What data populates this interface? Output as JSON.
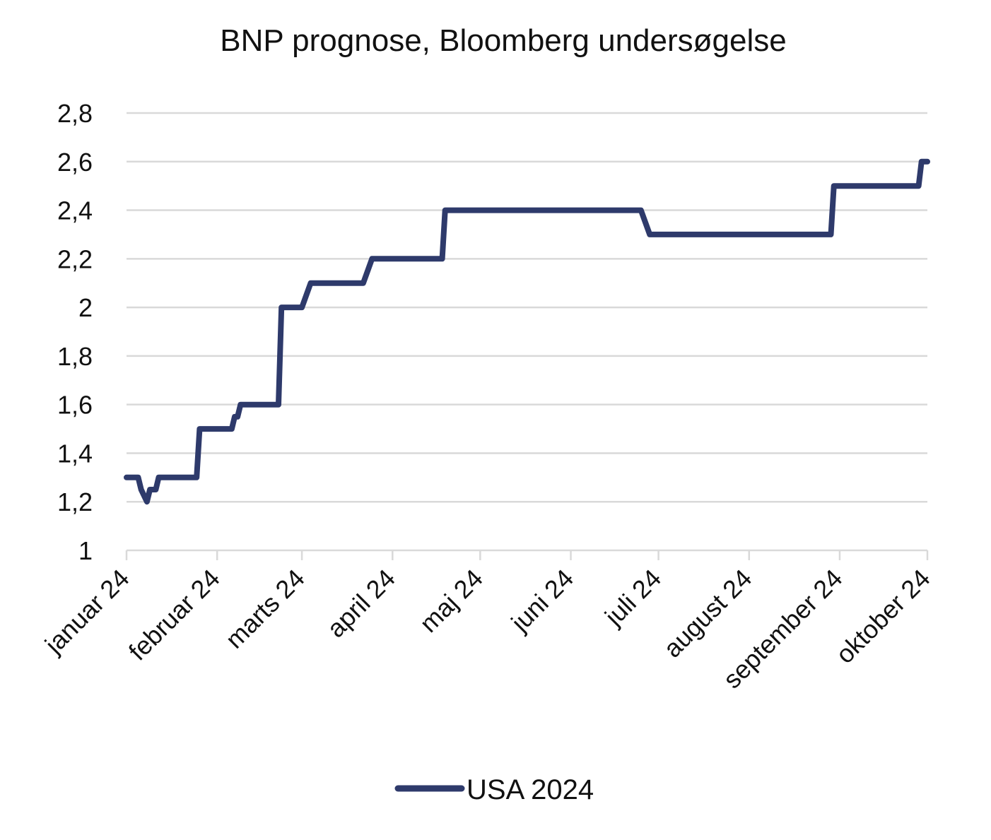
{
  "chart_data": {
    "type": "line",
    "title": "BNP prognose, Bloomberg undersøgelse",
    "xlabel": "",
    "ylabel": "",
    "ylim": [
      1,
      2.8
    ],
    "y_ticks": [
      "1",
      "1,2",
      "1,4",
      "1,6",
      "1,8",
      "2",
      "2,2",
      "2,4",
      "2,6",
      "2,8"
    ],
    "x_ticks": [
      "januar 24",
      "februar 24",
      "marts 24",
      "april 24",
      "maj 24",
      "juni 24",
      "juli 24",
      "august 24",
      "september 24",
      "oktober 24"
    ],
    "grid": true,
    "legend_position": "bottom",
    "series": [
      {
        "name": "USA 2024",
        "color": "#2E3A6B",
        "points": [
          [
            "2024-01-01",
            1.3
          ],
          [
            "2024-01-05",
            1.3
          ],
          [
            "2024-01-06",
            1.25
          ],
          [
            "2024-01-08",
            1.2
          ],
          [
            "2024-01-09",
            1.25
          ],
          [
            "2024-01-11",
            1.25
          ],
          [
            "2024-01-12",
            1.3
          ],
          [
            "2024-01-25",
            1.3
          ],
          [
            "2024-01-26",
            1.5
          ],
          [
            "2024-02-06",
            1.5
          ],
          [
            "2024-02-07",
            1.55
          ],
          [
            "2024-02-08",
            1.55
          ],
          [
            "2024-02-09",
            1.6
          ],
          [
            "2024-02-22",
            1.6
          ],
          [
            "2024-02-23",
            2.0
          ],
          [
            "2024-03-01",
            2.0
          ],
          [
            "2024-03-04",
            2.1
          ],
          [
            "2024-03-22",
            2.1
          ],
          [
            "2024-03-25",
            2.2
          ],
          [
            "2024-04-18",
            2.2
          ],
          [
            "2024-04-19",
            2.4
          ],
          [
            "2024-06-25",
            2.4
          ],
          [
            "2024-06-28",
            2.3
          ],
          [
            "2024-08-29",
            2.3
          ],
          [
            "2024-08-30",
            2.5
          ],
          [
            "2024-09-28",
            2.5
          ],
          [
            "2024-09-29",
            2.6
          ],
          [
            "2024-10-01",
            2.6
          ]
        ]
      }
    ]
  }
}
